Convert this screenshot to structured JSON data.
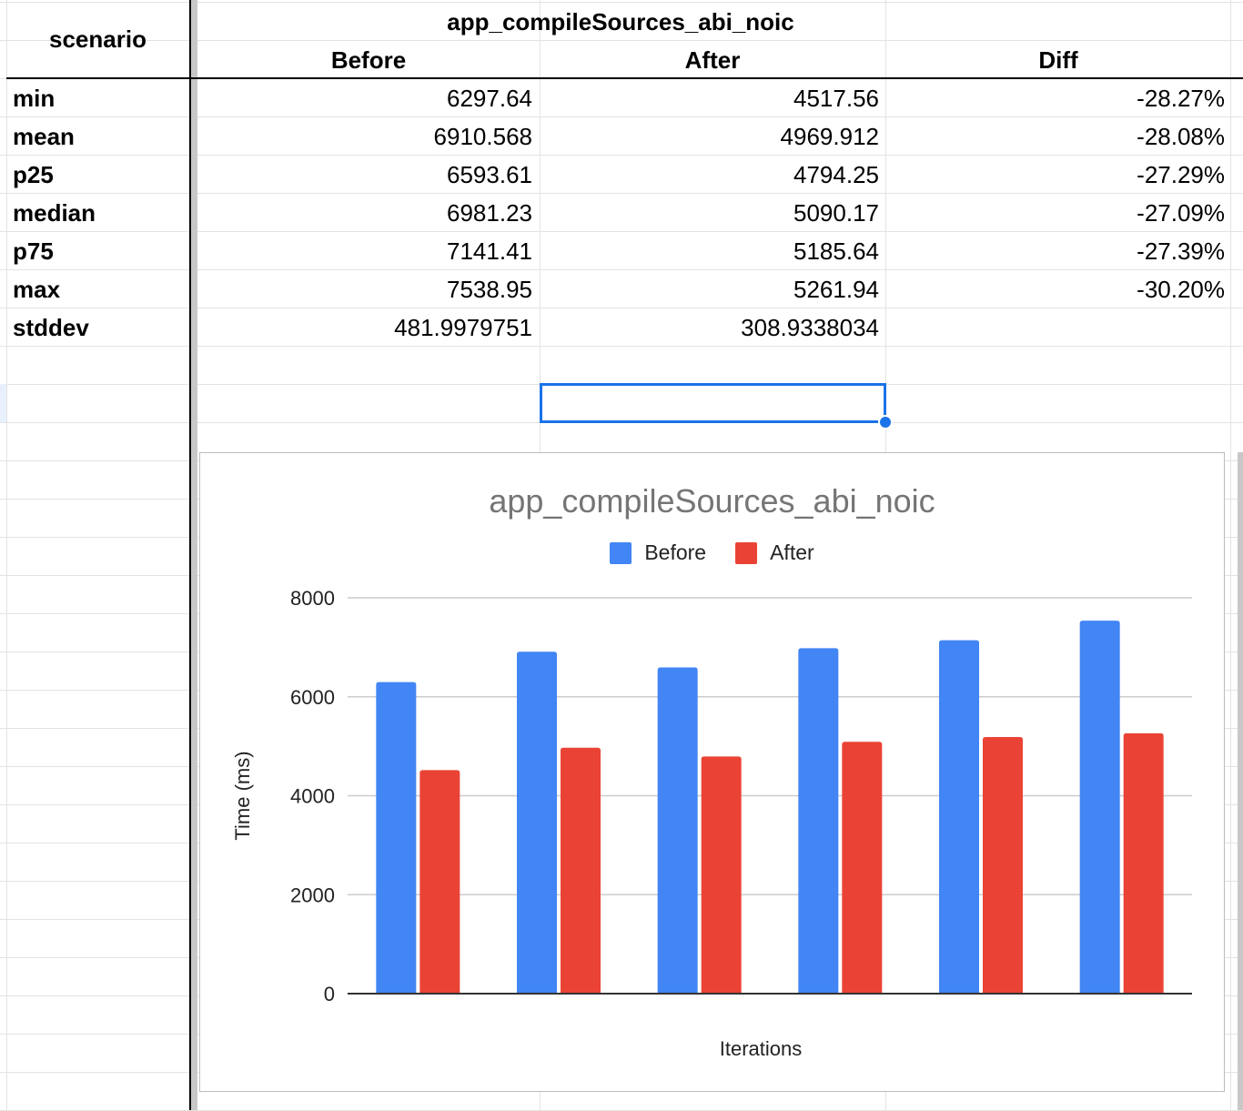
{
  "table": {
    "group_header": "app_compileSources_abi_noic",
    "scenario_header": "scenario",
    "columns": [
      "Before",
      "After",
      "Diff"
    ],
    "rows": [
      {
        "label": "min",
        "before": "6297.64",
        "after": "4517.56",
        "diff": "-28.27%"
      },
      {
        "label": "mean",
        "before": "6910.568",
        "after": "4969.912",
        "diff": "-28.08%"
      },
      {
        "label": "p25",
        "before": "6593.61",
        "after": "4794.25",
        "diff": "-27.29%"
      },
      {
        "label": "median",
        "before": "6981.23",
        "after": "5090.17",
        "diff": "-27.09%"
      },
      {
        "label": "p75",
        "before": "7141.41",
        "after": "5185.64",
        "diff": "-27.39%"
      },
      {
        "label": "max",
        "before": "7538.95",
        "after": "5261.94",
        "diff": "-30.20%"
      },
      {
        "label": "stddev",
        "before": "481.9979751",
        "after": "308.9338034",
        "diff": ""
      }
    ]
  },
  "chart_data": {
    "type": "bar",
    "title": "app_compileSources_abi_noic",
    "xlabel": "Iterations",
    "ylabel": "Time (ms)",
    "ylim": [
      0,
      8000
    ],
    "yticks": [
      0,
      2000,
      4000,
      6000,
      8000
    ],
    "categories": [
      "",
      "",
      "",
      "",
      "",
      ""
    ],
    "series": [
      {
        "name": "Before",
        "color": "#4285f4",
        "values": [
          6297.64,
          6910.568,
          6593.61,
          6981.23,
          7141.41,
          7538.95
        ]
      },
      {
        "name": "After",
        "color": "#ea4335",
        "values": [
          4517.56,
          4969.912,
          4794.25,
          5090.17,
          5185.64,
          5261.94
        ]
      }
    ],
    "legend": "top",
    "grid": true
  },
  "colors": {
    "selection": "#1a73e8",
    "gridline": "#e2e3e3"
  }
}
